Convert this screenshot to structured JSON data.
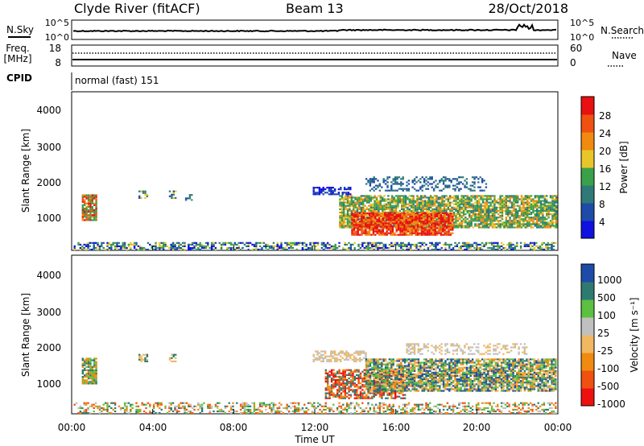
{
  "header": {
    "station": "Clyde River (fitACF)",
    "beam": "Beam 13",
    "date": "28/Oct/2018"
  },
  "noise_panel": {
    "left_label": "N.Sky",
    "right_label": "N.Search",
    "left_ticks": [
      "10^5",
      "10^0"
    ],
    "right_ticks": [
      "10^5",
      "10^0"
    ]
  },
  "freq_panel": {
    "left_label_1": "Freq.",
    "left_label_2": "[MHz]",
    "right_label": "Nave",
    "left_ticks": [
      "18",
      "8"
    ],
    "right_ticks": [
      "60",
      "0"
    ],
    "cpid_label": "CPID",
    "cpid_value": "normal (fast) 151"
  },
  "colors": {
    "power_scale": [
      "#1010e0",
      "#1e4ba8",
      "#2f7a78",
      "#3aa04a",
      "#e8c62a",
      "#f08a10",
      "#f05010",
      "#e81010"
    ],
    "velocity_scale": [
      "#ee1010",
      "#f05010",
      "#f08a10",
      "#f0b860",
      "#c0c0c0",
      "#5cc040",
      "#2f7a70",
      "#1e4ba8"
    ]
  },
  "chart_data": [
    {
      "type": "heatmap",
      "name": "power",
      "ylabel": "Slant Range [km]",
      "yticks": [
        "1000",
        "2000",
        "3000",
        "4000"
      ],
      "ylim": [
        200,
        4500
      ],
      "colorbar_label": "Power [dB]",
      "colorbar_ticks": [
        "4",
        "8",
        "12",
        "16",
        "20",
        "24",
        "28"
      ],
      "colorbar_range": [
        0,
        32
      ]
    },
    {
      "type": "heatmap",
      "name": "velocity",
      "ylabel": "Slant Range [km]",
      "yticks": [
        "1000",
        "2000",
        "3000",
        "4000"
      ],
      "ylim": [
        200,
        4500
      ],
      "colorbar_label": "Velocity [m s⁻¹]",
      "colorbar_ticks": [
        "1000",
        "500",
        "100",
        "25",
        "-25",
        "-100",
        "-500",
        "-1000"
      ],
      "xlabel": "Time UT",
      "xticks": [
        "00:00",
        "04:00",
        "08:00",
        "12:00",
        "16:00",
        "20:00",
        "00:00"
      ],
      "xlim_hours": [
        0,
        24
      ]
    }
  ]
}
